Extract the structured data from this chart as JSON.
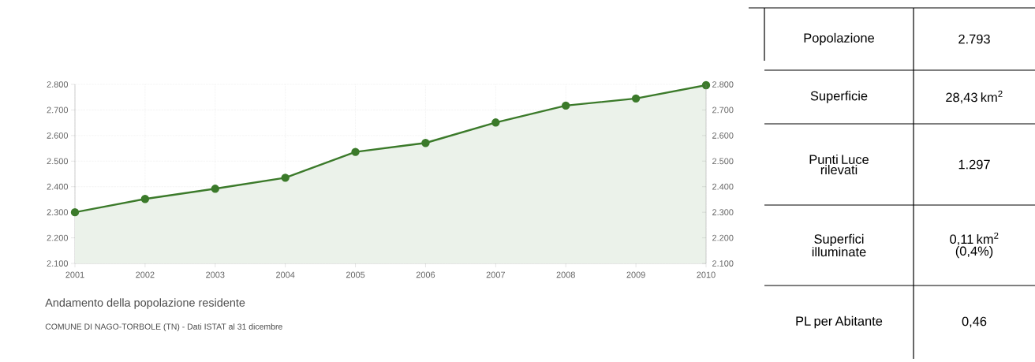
{
  "chart_data": [
    {
      "type": "area",
      "categories": [
        "2001",
        "2002",
        "2003",
        "2004",
        "2005",
        "2006",
        "2007",
        "2008",
        "2009",
        "2010"
      ],
      "values": [
        2300,
        2352,
        2392,
        2435,
        2536,
        2571,
        2651,
        2717,
        2745,
        2797
      ],
      "color": "#3b7a2a",
      "marker": "circle",
      "grid": true,
      "ylim": [
        2100,
        2800
      ],
      "yticks": [
        {
          "value": 2100,
          "label": "2.100"
        },
        {
          "value": 2200,
          "label": "2.200"
        },
        {
          "value": 2300,
          "label": "2.300"
        },
        {
          "value": 2400,
          "label": "2.400"
        },
        {
          "value": 2500,
          "label": "2.500"
        },
        {
          "value": 2600,
          "label": "2.600"
        },
        {
          "value": 2700,
          "label": "2.700"
        },
        {
          "value": 2800,
          "label": "2.800"
        }
      ],
      "y2lim": [
        2100,
        2800
      ],
      "y2ticks": [
        {
          "value": 2100,
          "label": "2.100"
        },
        {
          "value": 2200,
          "label": "2.200"
        },
        {
          "value": 2300,
          "label": "2.300"
        },
        {
          "value": 2400,
          "label": "2.400"
        },
        {
          "value": 2500,
          "label": "2.500"
        },
        {
          "value": 2600,
          "label": "2.600"
        },
        {
          "value": 2700,
          "label": "2.700"
        },
        {
          "value": 2800,
          "label": "2.800"
        }
      ],
      "annotations": [
        "Andamento della popolazione residente",
        "COMUNE DI NAGO-TORBOLE (TN) - Dati ISTAT al 31 dicembre"
      ]
    },
    {
      "type": "other",
      "categories": [
        "Popolazione",
        "Superficie",
        "Punti Luce rilevati",
        "Superfici illuminate",
        "PL per Abitante"
      ],
      "value_labels": [
        "2.793",
        "28,43 km$^{2}$",
        "1.297",
        "0,11 km$^{2}$ (0,4%)",
        "0,46"
      ]
    }
  ]
}
